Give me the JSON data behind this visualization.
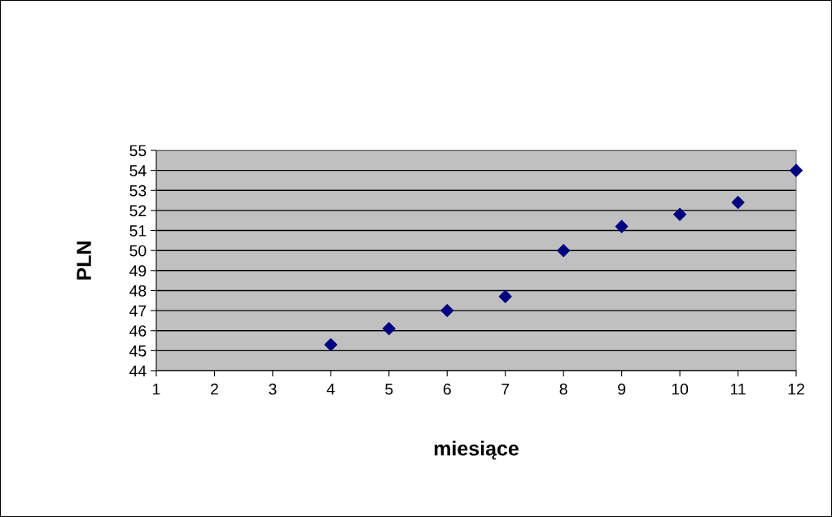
{
  "chart_data": {
    "type": "scatter",
    "xlabel": "miesiące",
    "ylabel": "PLN",
    "x": [
      4,
      5,
      6,
      7,
      8,
      9,
      10,
      11,
      12
    ],
    "series": [
      {
        "color": "#000080",
        "values": [
          45.3,
          46.1,
          47.0,
          47.7,
          50.0,
          51.2,
          51.8,
          52.4,
          54.0
        ]
      }
    ],
    "xlim": [
      1,
      12
    ],
    "xticks": [
      1,
      2,
      3,
      4,
      5,
      6,
      7,
      8,
      9,
      10,
      11,
      12
    ],
    "ylim": [
      44,
      55
    ],
    "yticks": [
      44,
      45,
      46,
      47,
      48,
      49,
      50,
      51,
      52,
      53,
      54,
      55
    ],
    "grid": "y",
    "marker": "diamond",
    "legend": false
  }
}
